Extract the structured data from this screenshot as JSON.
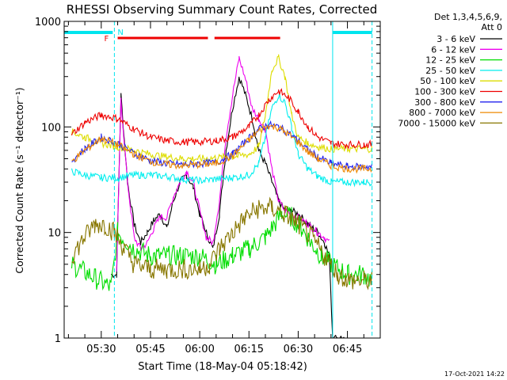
{
  "chart_data": {
    "type": "line",
    "title": "RHESSI Observing Summary Count Rates, Corrected",
    "ylabel": "Corrected Count Rate (s⁻¹ detector⁻¹)",
    "xlabel": "Start Time (18-May-04 05:18:42)",
    "yscale": "log",
    "ylim": [
      1,
      1000
    ],
    "xlim": [
      "05:18:42",
      "06:55:00"
    ],
    "ytick_labels": [
      "1",
      "10",
      "100",
      "1000"
    ],
    "xtick_labels": [
      "05:30",
      "05:45",
      "06:00",
      "06:15",
      "06:30",
      "06:45"
    ],
    "legend_header": [
      "Det 1,3,4,5,6,9,",
      "Att 0"
    ],
    "legend_position": "right",
    "timestamp": "17-Oct-2021 14:22",
    "flags": {
      "night_label": "N",
      "flare_label": "F",
      "night_color": "#00e5ee",
      "flare_color": "#ee0000",
      "night_lines": [
        "05:34:00",
        "06:40:30",
        "06:52:30"
      ],
      "night_bars": [
        [
          "05:18:42",
          "05:33:30"
        ],
        [
          "06:40:30",
          "06:52:30"
        ]
      ],
      "flare_bars": [
        [
          "05:35:00",
          "06:02:30"
        ],
        [
          "06:04:30",
          "06:24:30"
        ]
      ]
    },
    "series": [
      {
        "name": "3 - 6 keV",
        "color": "#000000",
        "x": [
          "05:25",
          "05:30",
          "05:33",
          "05:34:40",
          "05:36",
          "05:38",
          "05:40",
          "05:42",
          "05:44",
          "05:46",
          "05:48",
          "05:50",
          "05:52",
          "05:54",
          "05:56",
          "05:58",
          "06:00",
          "06:02",
          "06:04",
          "06:06",
          "06:08",
          "06:10",
          "06:12",
          "06:14",
          "06:16",
          "06:18",
          "06:20",
          "06:22",
          "06:24",
          "06:26",
          "06:28",
          "06:30",
          "06:33",
          "06:36",
          "06:38",
          "06:39:30",
          "06:40:30",
          "06:42",
          "06:44"
        ],
        "y": [
          null,
          null,
          4,
          4,
          200,
          30,
          12,
          8,
          10,
          13,
          15,
          11,
          20,
          30,
          35,
          27,
          15,
          10,
          7,
          15,
          60,
          150,
          300,
          200,
          120,
          60,
          45,
          30,
          20,
          16,
          16,
          15,
          12,
          10,
          8,
          6,
          1,
          1,
          1
        ]
      },
      {
        "name": "6 - 12 keV",
        "color": "#ee00ee",
        "x": [
          "05:34:40",
          "05:36",
          "05:38",
          "05:40",
          "05:42",
          "05:44",
          "05:46",
          "05:48",
          "05:50",
          "05:52",
          "05:54",
          "05:56",
          "05:58",
          "06:00",
          "06:02",
          "06:04",
          "06:06",
          "06:08",
          "06:10",
          "06:12",
          "06:14",
          "06:16",
          "06:18",
          "06:20",
          "06:22",
          "06:24",
          "06:26",
          "06:28",
          "06:30",
          "06:33",
          "06:36",
          "06:38",
          "06:39:30"
        ],
        "y": [
          4,
          180,
          30,
          9,
          7,
          8,
          11,
          14,
          14,
          22,
          30,
          38,
          30,
          16,
          9,
          8,
          20,
          80,
          200,
          450,
          280,
          150,
          120,
          95,
          40,
          20,
          16,
          15,
          14,
          12,
          10,
          9,
          8
        ]
      },
      {
        "name": "12 - 25 keV",
        "color": "#00dd00",
        "x": [
          "05:21",
          "05:33",
          "05:35",
          "05:40",
          "05:45",
          "05:50",
          "05:55",
          "06:00",
          "06:05",
          "06:10",
          "06:15",
          "06:20",
          "06:25",
          "06:28",
          "06:31",
          "06:34",
          "06:37",
          "06:40",
          "06:45",
          "06:50",
          "06:52:30"
        ],
        "y": [
          5,
          3,
          10,
          7,
          6,
          6,
          6,
          6,
          5,
          6,
          7,
          9,
          15,
          14,
          11,
          8,
          6,
          5,
          4,
          4,
          3.5
        ]
      },
      {
        "name": "25 - 50 keV",
        "color": "#00eeee",
        "x": [
          "05:21",
          "05:25",
          "05:30",
          "05:35",
          "05:40",
          "05:45",
          "05:50",
          "05:55",
          "06:00",
          "06:05",
          "06:10",
          "06:15",
          "06:18",
          "06:20",
          "06:22",
          "06:24",
          "06:26",
          "06:28",
          "06:30",
          "06:33",
          "06:36",
          "06:40",
          "06:45",
          "06:50",
          "06:52:30"
        ],
        "y": [
          38,
          35,
          33,
          33,
          35,
          35,
          34,
          32,
          31,
          32,
          33,
          35,
          45,
          80,
          150,
          200,
          170,
          100,
          55,
          40,
          34,
          30,
          30,
          30,
          30
        ]
      },
      {
        "name": "50 - 100 keV",
        "color": "#dddd00",
        "x": [
          "05:21",
          "05:25",
          "05:30",
          "05:35",
          "05:40",
          "05:45",
          "05:50",
          "05:55",
          "06:00",
          "06:05",
          "06:10",
          "06:15",
          "06:18",
          "06:20",
          "06:22",
          "06:24",
          "06:26",
          "06:28",
          "06:30",
          "06:33",
          "06:36",
          "06:40",
          "06:45",
          "06:50",
          "06:52:30"
        ],
        "y": [
          90,
          80,
          70,
          65,
          60,
          55,
          52,
          50,
          50,
          51,
          52,
          55,
          65,
          130,
          350,
          450,
          300,
          130,
          80,
          70,
          65,
          62,
          62,
          62,
          62
        ]
      },
      {
        "name": "100 - 300 keV",
        "color": "#ee0000",
        "x": [
          "05:21",
          "05:25",
          "05:30",
          "05:35",
          "05:40",
          "05:45",
          "05:50",
          "05:55",
          "06:00",
          "06:05",
          "06:10",
          "06:15",
          "06:18",
          "06:21",
          "06:24",
          "06:27",
          "06:30",
          "06:33",
          "06:36",
          "06:40",
          "06:45",
          "06:50",
          "06:52:30"
        ],
        "y": [
          85,
          110,
          130,
          120,
          95,
          80,
          74,
          72,
          72,
          74,
          80,
          100,
          130,
          180,
          220,
          190,
          140,
          100,
          80,
          70,
          68,
          68,
          68
        ]
      },
      {
        "name": "300 - 800 keV",
        "color": "#2222ee",
        "x": [
          "05:21",
          "05:25",
          "05:30",
          "05:35",
          "05:40",
          "05:45",
          "05:50",
          "05:55",
          "06:00",
          "06:05",
          "06:10",
          "06:15",
          "06:18",
          "06:21",
          "06:24",
          "06:27",
          "06:30",
          "06:33",
          "06:36",
          "06:40",
          "06:45",
          "06:50",
          "06:52:30"
        ],
        "y": [
          48,
          62,
          80,
          70,
          56,
          48,
          45,
          44,
          45,
          46,
          55,
          78,
          95,
          105,
          100,
          88,
          74,
          60,
          52,
          45,
          42,
          42,
          42
        ]
      },
      {
        "name": "800 - 7000 keV",
        "color": "#ee8800",
        "x": [
          "05:21",
          "05:25",
          "05:30",
          "05:35",
          "05:40",
          "05:45",
          "05:50",
          "05:55",
          "06:00",
          "06:05",
          "06:10",
          "06:15",
          "06:18",
          "06:21",
          "06:24",
          "06:27",
          "06:30",
          "06:33",
          "06:36",
          "06:40",
          "06:45",
          "06:50",
          "06:52:30"
        ],
        "y": [
          47,
          60,
          78,
          68,
          55,
          47,
          44,
          43,
          44,
          45,
          53,
          75,
          92,
          102,
          98,
          85,
          72,
          58,
          50,
          43,
          40,
          40,
          40
        ]
      },
      {
        "name": "7000 - 15000 keV",
        "color": "#887700",
        "x": [
          "05:21",
          "05:25",
          "05:28",
          "05:31",
          "05:34",
          "05:37",
          "05:40",
          "05:45",
          "05:50",
          "05:55",
          "06:00",
          "06:03",
          "06:06",
          "06:10",
          "06:14",
          "06:18",
          "06:22",
          "06:26",
          "06:30",
          "06:34",
          "06:38",
          "06:42",
          "06:46",
          "06:50",
          "06:52:30"
        ],
        "y": [
          6,
          9,
          12,
          12,
          10,
          7,
          5,
          4.5,
          4.5,
          4.5,
          4.5,
          5,
          7,
          10,
          14,
          17,
          17,
          15,
          12,
          9,
          6,
          4,
          3.5,
          3.5,
          3.5
        ]
      }
    ]
  }
}
